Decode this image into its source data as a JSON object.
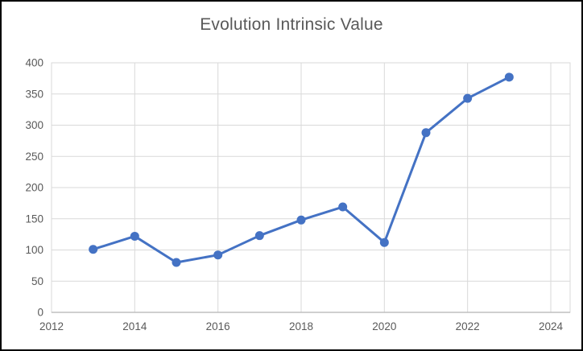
{
  "chart": {
    "background_color": "#ffffff",
    "frame_border_color": "#000000"
  },
  "chart_data": {
    "type": "line",
    "title": "Evolution Intrinsic Value",
    "x": [
      2013,
      2014,
      2015,
      2016,
      2017,
      2018,
      2019,
      2020,
      2021,
      2022,
      2023
    ],
    "values": [
      101,
      122,
      80,
      92,
      123,
      148,
      169,
      112,
      288,
      343,
      377
    ],
    "series": [
      {
        "name": "Intrinsic Value",
        "values": [
          101,
          122,
          80,
          92,
          123,
          148,
          169,
          112,
          288,
          343,
          377
        ]
      }
    ],
    "xlabel": "",
    "ylabel": "",
    "xlim": [
      2012,
      2024
    ],
    "ylim": [
      0,
      400
    ],
    "x_ticks": [
      2012,
      2014,
      2016,
      2018,
      2020,
      2022,
      2024
    ],
    "y_ticks": [
      0,
      50,
      100,
      150,
      200,
      250,
      300,
      350,
      400
    ],
    "grid": true,
    "legend_position": "none",
    "marker": "circle",
    "line_color": "#4472C4",
    "marker_color": "#4472C4",
    "gridline_color": "#D9D9D9",
    "plot_border_color": "#D9D9D9",
    "axis_line_color": "#BFBFBF",
    "tick_label_color": "#595959",
    "title_color": "#595959"
  }
}
